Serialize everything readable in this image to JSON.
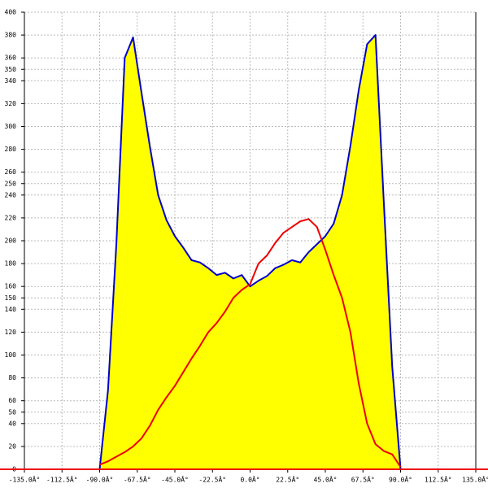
{
  "chart_data": {
    "type": "area",
    "x": [
      -90,
      -85,
      -80,
      -75,
      -70,
      -65,
      -60,
      -55,
      -50,
      -45,
      -40,
      -35,
      -30,
      -25,
      -20,
      -15,
      -10,
      -5,
      0,
      5,
      10,
      15,
      20,
      25,
      30,
      35,
      40,
      45,
      50,
      55,
      60,
      65,
      70,
      75,
      80,
      85,
      90
    ],
    "series": [
      {
        "color": "#0000cc",
        "fill": "#ffff00",
        "values": [
          0,
          69,
          197,
          360,
          378,
          330,
          283,
          240,
          218,
          204,
          194,
          183,
          181,
          176,
          170,
          172,
          167,
          170,
          160,
          165,
          169,
          176,
          179,
          183,
          181,
          190,
          197,
          204,
          215,
          240,
          283,
          332,
          372,
          380,
          233,
          90,
          0
        ]
      },
      {
        "color": "#ee0000",
        "values": [
          4,
          7,
          11,
          15,
          20,
          27,
          38,
          52,
          63,
          73,
          85,
          97,
          108,
          120,
          128,
          138,
          150,
          157,
          162,
          180,
          187,
          198,
          207,
          212,
          217,
          219,
          212,
          192,
          170,
          150,
          120,
          75,
          40,
          22,
          16,
          13,
          2
        ]
      }
    ],
    "xlim": [
      -135,
      135
    ],
    "ylim": [
      0,
      400
    ],
    "xticks": [
      {
        "value": -135,
        "label": "-135.0Â°"
      },
      {
        "value": -112.5,
        "label": "-112.5Â°"
      },
      {
        "value": -90,
        "label": "-90.0Â°"
      },
      {
        "value": -67.5,
        "label": "-67.5Â°"
      },
      {
        "value": -45,
        "label": "-45.0Â°"
      },
      {
        "value": -22.5,
        "label": "-22.5Â°"
      },
      {
        "value": 0,
        "label": "0.0Â°"
      },
      {
        "value": 22.5,
        "label": "22.5Â°"
      },
      {
        "value": 45,
        "label": "45.0Â°"
      },
      {
        "value": 67.5,
        "label": "67.5Â°"
      },
      {
        "value": 90,
        "label": "90.0Â°"
      },
      {
        "value": 112.5,
        "label": "112.5Â°"
      },
      {
        "value": 135,
        "label": "135.0Â°"
      }
    ],
    "yticks": [
      0,
      20,
      40,
      50,
      60,
      80,
      100,
      120,
      140,
      150,
      160,
      180,
      200,
      220,
      240,
      250,
      260,
      280,
      300,
      320,
      340,
      350,
      360,
      380,
      400
    ],
    "grid": true,
    "baseline_color": "#ee0000"
  }
}
